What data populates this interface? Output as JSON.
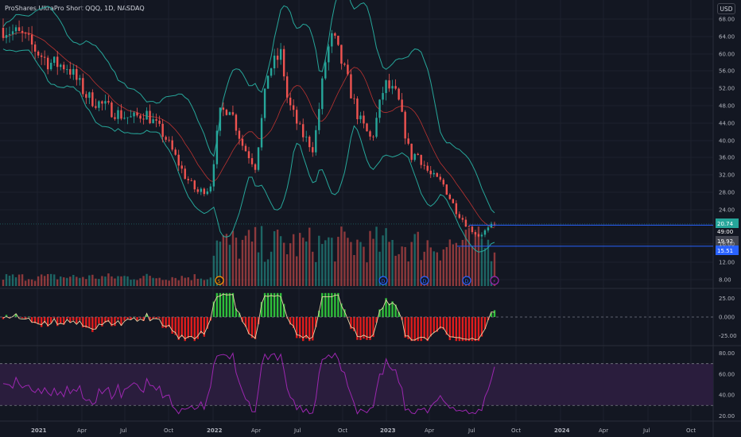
{
  "header": {
    "title": "ProShares UltraPro Short QQQ, 1D, NASDAQ",
    "currency": "USD"
  },
  "colors": {
    "background": "#131722",
    "grid": "#1e222d",
    "up": "#26a69a",
    "down": "#ef5350",
    "bb_band": "#26a69a",
    "bb_basis": "#e53935",
    "hline": "#2962ff",
    "rsi_line": "#9c27b0",
    "rsi_band_fill": "#2a1d3d",
    "momentum_line": "#e8d5a8",
    "osc_positive": "#2ebd3a",
    "osc_negative": "#e01c1c",
    "axis_text": "#b2b5be"
  },
  "chart_data": [
    {
      "type": "candlestick",
      "title": "ProShares UltraPro Short QQQ, 1D, NASDAQ",
      "x_ticks": [
        "2021",
        "Apr",
        "Jul",
        "Oct",
        "2022",
        "Apr",
        "Jul",
        "Oct",
        "2023",
        "Apr",
        "Jul",
        "Oct",
        "2024",
        "Apr",
        "Jul",
        "Oct"
      ],
      "y_ticks": [
        "68.00",
        "64.00",
        "60.00",
        "56.00",
        "52.00",
        "48.00",
        "44.00",
        "40.00",
        "36.00",
        "32.00",
        "28.00",
        "24.00",
        "16.00",
        "12.00",
        "8.00"
      ],
      "ylim": [
        6,
        69
      ],
      "close_trend": [
        {
          "t": 0.0,
          "v": 66
        },
        {
          "t": 0.03,
          "v": 64
        },
        {
          "t": 0.07,
          "v": 58
        },
        {
          "t": 0.1,
          "v": 57
        },
        {
          "t": 0.13,
          "v": 50
        },
        {
          "t": 0.18,
          "v": 46
        },
        {
          "t": 0.2,
          "v": 45
        },
        {
          "t": 0.22,
          "v": 46.5
        },
        {
          "t": 0.25,
          "v": 41
        },
        {
          "t": 0.28,
          "v": 32
        },
        {
          "t": 0.3,
          "v": 28
        },
        {
          "t": 0.32,
          "v": 29
        },
        {
          "t": 0.335,
          "v": 46
        },
        {
          "t": 0.35,
          "v": 48
        },
        {
          "t": 0.37,
          "v": 39
        },
        {
          "t": 0.39,
          "v": 34
        },
        {
          "t": 0.41,
          "v": 56
        },
        {
          "t": 0.43,
          "v": 60
        },
        {
          "t": 0.44,
          "v": 49
        },
        {
          "t": 0.46,
          "v": 42
        },
        {
          "t": 0.48,
          "v": 38
        },
        {
          "t": 0.5,
          "v": 60
        },
        {
          "t": 0.51,
          "v": 64
        },
        {
          "t": 0.53,
          "v": 55
        },
        {
          "t": 0.55,
          "v": 45
        },
        {
          "t": 0.57,
          "v": 40
        },
        {
          "t": 0.59,
          "v": 53
        },
        {
          "t": 0.61,
          "v": 50
        },
        {
          "t": 0.63,
          "v": 36
        },
        {
          "t": 0.64,
          "v": 37
        },
        {
          "t": 0.66,
          "v": 32
        },
        {
          "t": 0.68,
          "v": 30
        },
        {
          "t": 0.7,
          "v": 24
        },
        {
          "t": 0.72,
          "v": 20
        },
        {
          "t": 0.735,
          "v": 18
        },
        {
          "t": 0.75,
          "v": 19.5
        },
        {
          "t": 0.76,
          "v": 20.74
        }
      ],
      "bollinger_bands": {
        "basis": "rolling mean",
        "upper_lower": "basis ± band"
      },
      "horizontal_lines": [
        20.47,
        15.51
      ],
      "last_value_labels": [
        "20.74",
        "19.92",
        "15.51"
      ],
      "countdown_label": "49:00",
      "event_markers": [
        {
          "letter": "S",
          "color": "#ff9800"
        },
        {
          "letter": "D",
          "color": "#2962ff"
        },
        {
          "letter": "D",
          "color": "#2962ff"
        },
        {
          "letter": "D",
          "color": "#2962ff"
        },
        {
          "letter": "⚡",
          "color": "#9c27b0"
        }
      ]
    },
    {
      "type": "bar",
      "title": "",
      "note": "volume histogram overlaid at bottom of main pane",
      "levels": {
        "pre_2022": 0.12,
        "post_2022": 0.55
      }
    },
    {
      "type": "area",
      "title": "",
      "y_ticks": [
        "25.00",
        "0.000",
        "-25.00"
      ],
      "ylim": [
        -35,
        35
      ],
      "zero_line": 0
    },
    {
      "type": "line",
      "title": "",
      "y_ticks": [
        "80.00",
        "60.00",
        "40.00",
        "20.00"
      ],
      "ylim": [
        18,
        85
      ],
      "bands": [
        70,
        30
      ],
      "last_value": 67
    }
  ]
}
